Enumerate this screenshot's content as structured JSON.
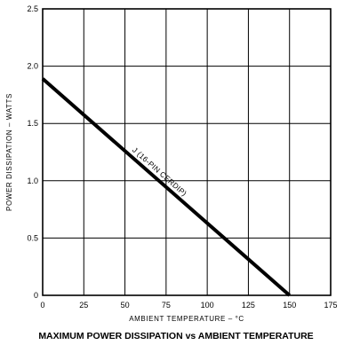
{
  "chart_data": {
    "type": "line",
    "title": "MAXIMUM POWER DISSIPATION vs AMBIENT TEMPERATURE",
    "xlabel": "AMBIENT TEMPERATURE – °C",
    "ylabel": "POWER DISSIPATION – WATTS",
    "xlim": [
      0,
      175
    ],
    "ylim": [
      0,
      2.5
    ],
    "x_ticks": [
      0,
      25,
      50,
      75,
      100,
      125,
      150,
      175
    ],
    "y_ticks": [
      0,
      0.5,
      1.0,
      1.5,
      2.0,
      2.5
    ],
    "x_tick_labels": [
      "0",
      "25",
      "50",
      "75",
      "100",
      "125",
      "150",
      "175"
    ],
    "y_tick_labels": [
      "0",
      "0.5",
      "1.0",
      "1.5",
      "2.0",
      "2.5"
    ],
    "grid": true,
    "series": [
      {
        "name": "J (16-PIN CERDIP)",
        "x": [
          0,
          150
        ],
        "y": [
          1.89,
          0
        ],
        "color": "#000000"
      }
    ]
  }
}
